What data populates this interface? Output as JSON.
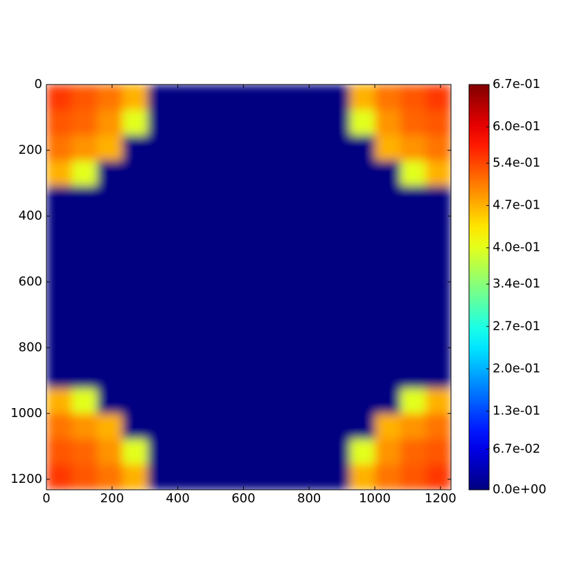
{
  "chart_data": {
    "type": "heatmap",
    "xlim": [
      0,
      1232
    ],
    "ylim": [
      1232,
      0
    ],
    "xticks": [
      0,
      200,
      400,
      600,
      800,
      1000,
      1200
    ],
    "yticks": [
      0,
      200,
      400,
      600,
      800,
      1000,
      1200
    ],
    "clim": [
      0,
      0.67
    ],
    "colorbar_ticks": [
      {
        "value": 0,
        "label": "0.0e+00"
      },
      {
        "value": 0.067,
        "label": "6.7e-02"
      },
      {
        "value": 0.13,
        "label": "1.3e-01"
      },
      {
        "value": 0.2,
        "label": "2.0e-01"
      },
      {
        "value": 0.27,
        "label": "2.7e-01"
      },
      {
        "value": 0.34,
        "label": "3.4e-01"
      },
      {
        "value": 0.4,
        "label": "4.0e-01"
      },
      {
        "value": 0.47,
        "label": "4.7e-01"
      },
      {
        "value": 0.54,
        "label": "5.4e-01"
      },
      {
        "value": 0.6,
        "label": "6.0e-01"
      },
      {
        "value": 0.67,
        "label": "6.7e-01"
      }
    ],
    "colormap": "jet",
    "z": [
      [
        0.55,
        0.53,
        0.51,
        0.47,
        0,
        0,
        0,
        0,
        0,
        0,
        0,
        0,
        0.47,
        0.51,
        0.53,
        0.55
      ],
      [
        0.53,
        0.52,
        0.49,
        0.4,
        0,
        0,
        0,
        0,
        0,
        0,
        0,
        0,
        0.4,
        0.49,
        0.52,
        0.53
      ],
      [
        0.51,
        0.49,
        0.47,
        0,
        0,
        0,
        0,
        0,
        0,
        0,
        0,
        0,
        0,
        0.47,
        0.49,
        0.51
      ],
      [
        0.47,
        0.4,
        0,
        0,
        0,
        0,
        0,
        0,
        0,
        0,
        0,
        0,
        0,
        0,
        0.4,
        0.47
      ],
      [
        0,
        0,
        0,
        0,
        0,
        0,
        0,
        0,
        0,
        0,
        0,
        0,
        0,
        0,
        0,
        0
      ],
      [
        0,
        0,
        0,
        0,
        0,
        0,
        0,
        0,
        0,
        0,
        0,
        0,
        0,
        0,
        0,
        0
      ],
      [
        0,
        0,
        0,
        0,
        0,
        0,
        0,
        0,
        0,
        0,
        0,
        0,
        0,
        0,
        0,
        0
      ],
      [
        0,
        0,
        0,
        0,
        0,
        0,
        0,
        0,
        0,
        0,
        0,
        0,
        0,
        0,
        0,
        0
      ],
      [
        0,
        0,
        0,
        0,
        0,
        0,
        0,
        0,
        0,
        0,
        0,
        0,
        0,
        0,
        0,
        0
      ],
      [
        0,
        0,
        0,
        0,
        0,
        0,
        0,
        0,
        0,
        0,
        0,
        0,
        0,
        0,
        0,
        0
      ],
      [
        0,
        0,
        0,
        0,
        0,
        0,
        0,
        0,
        0,
        0,
        0,
        0,
        0,
        0,
        0,
        0
      ],
      [
        0,
        0,
        0,
        0,
        0,
        0,
        0,
        0,
        0,
        0,
        0,
        0,
        0,
        0,
        0,
        0
      ],
      [
        0.47,
        0.4,
        0,
        0,
        0,
        0,
        0,
        0,
        0,
        0,
        0,
        0,
        0,
        0,
        0.4,
        0.47
      ],
      [
        0.51,
        0.49,
        0.47,
        0,
        0,
        0,
        0,
        0,
        0,
        0,
        0,
        0,
        0,
        0.47,
        0.49,
        0.51
      ],
      [
        0.53,
        0.52,
        0.49,
        0.4,
        0,
        0,
        0,
        0,
        0,
        0,
        0,
        0,
        0.4,
        0.49,
        0.52,
        0.53
      ],
      [
        0.55,
        0.53,
        0.51,
        0.47,
        0,
        0,
        0,
        0,
        0,
        0,
        0,
        0,
        0.47,
        0.51,
        0.53,
        0.55
      ]
    ]
  }
}
